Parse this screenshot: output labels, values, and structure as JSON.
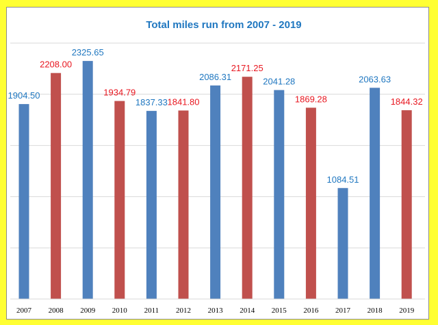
{
  "chart_data": {
    "type": "bar",
    "title": "Total miles run from 2007 - 2019",
    "xlabel": "",
    "ylabel": "",
    "categories": [
      "2007",
      "2008",
      "2009",
      "2010",
      "2011",
      "2012",
      "2013",
      "2014",
      "2015",
      "2016",
      "2017",
      "2018",
      "2019"
    ],
    "values": [
      1904.5,
      2208.0,
      2325.65,
      1934.79,
      1837.33,
      1841.8,
      2086.31,
      2171.25,
      2041.28,
      1869.28,
      1084.51,
      2063.63,
      1844.32
    ],
    "value_labels": [
      "1904.50",
      "2208.00",
      "2325.65",
      "1934.79",
      "1837.33",
      "1841.80",
      "2086.31",
      "2171.25",
      "2041.28",
      "1869.28",
      "1084.51",
      "2063.63",
      "1844.32"
    ],
    "bar_colors": [
      "#4f81bd",
      "#c0504d",
      "#4f81bd",
      "#c0504d",
      "#4f81bd",
      "#c0504d",
      "#4f81bd",
      "#c0504d",
      "#4f81bd",
      "#c0504d",
      "#4f81bd",
      "#4f81bd",
      "#c0504d"
    ],
    "label_colors": [
      "#1f77c0",
      "#e8161f",
      "#1f77c0",
      "#e8161f",
      "#1f77c0",
      "#e8161f",
      "#1f77c0",
      "#e8161f",
      "#1f77c0",
      "#e8161f",
      "#1f77c0",
      "#1f77c0",
      "#e8161f"
    ],
    "ylim": [
      0,
      2500
    ],
    "grid": true,
    "legend": "none",
    "title_color": "#1f77c0",
    "page_background": "#ffff33"
  }
}
